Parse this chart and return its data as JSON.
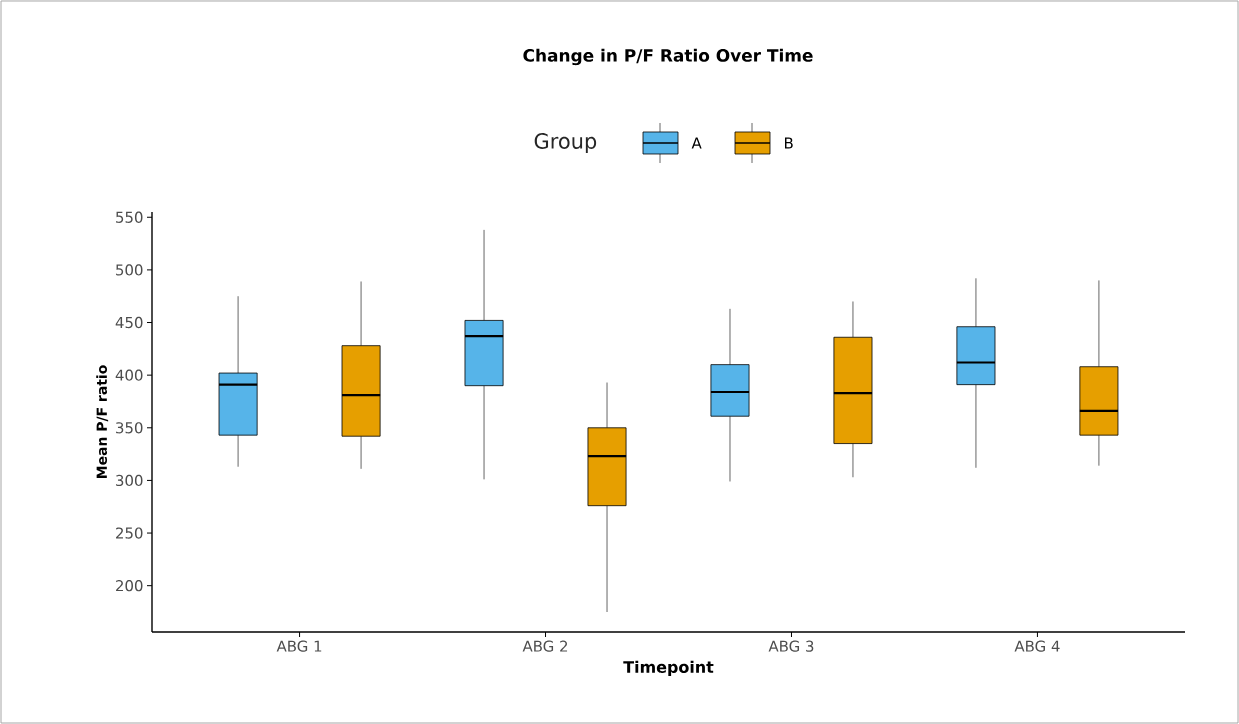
{
  "chart_data": {
    "type": "box",
    "title": "Change in P/F Ratio Over Time",
    "xlabel": "Timepoint",
    "ylabel": "Mean P/F ratio",
    "legend_title": "Group",
    "legend": "top",
    "grid": false,
    "categories": [
      "ABG 1",
      "ABG 2",
      "ABG 3",
      "ABG 4"
    ],
    "series": [
      {
        "name": "A",
        "color": "#56b4e9",
        "boxes": [
          {
            "low": 313,
            "q1": 343,
            "median": 391,
            "q3": 402,
            "high": 475
          },
          {
            "low": 301,
            "q1": 390,
            "median": 437,
            "q3": 452,
            "high": 538
          },
          {
            "low": 299,
            "q1": 361,
            "median": 384,
            "q3": 410,
            "high": 463
          },
          {
            "low": 312,
            "q1": 391,
            "median": 412,
            "q3": 446,
            "high": 492
          }
        ]
      },
      {
        "name": "B",
        "color": "#e69f00",
        "boxes": [
          {
            "low": 311,
            "q1": 342,
            "median": 381,
            "q3": 428,
            "high": 489
          },
          {
            "low": 175,
            "q1": 276,
            "median": 323,
            "q3": 350,
            "high": 393
          },
          {
            "low": 303,
            "q1": 335,
            "median": 383,
            "q3": 436,
            "high": 470
          },
          {
            "low": 314,
            "q1": 343,
            "median": 366,
            "q3": 408,
            "high": 490
          }
        ]
      }
    ],
    "ylim": [
      156,
      555
    ],
    "yticks": [
      200,
      250,
      300,
      350,
      400,
      450,
      500,
      550
    ]
  }
}
